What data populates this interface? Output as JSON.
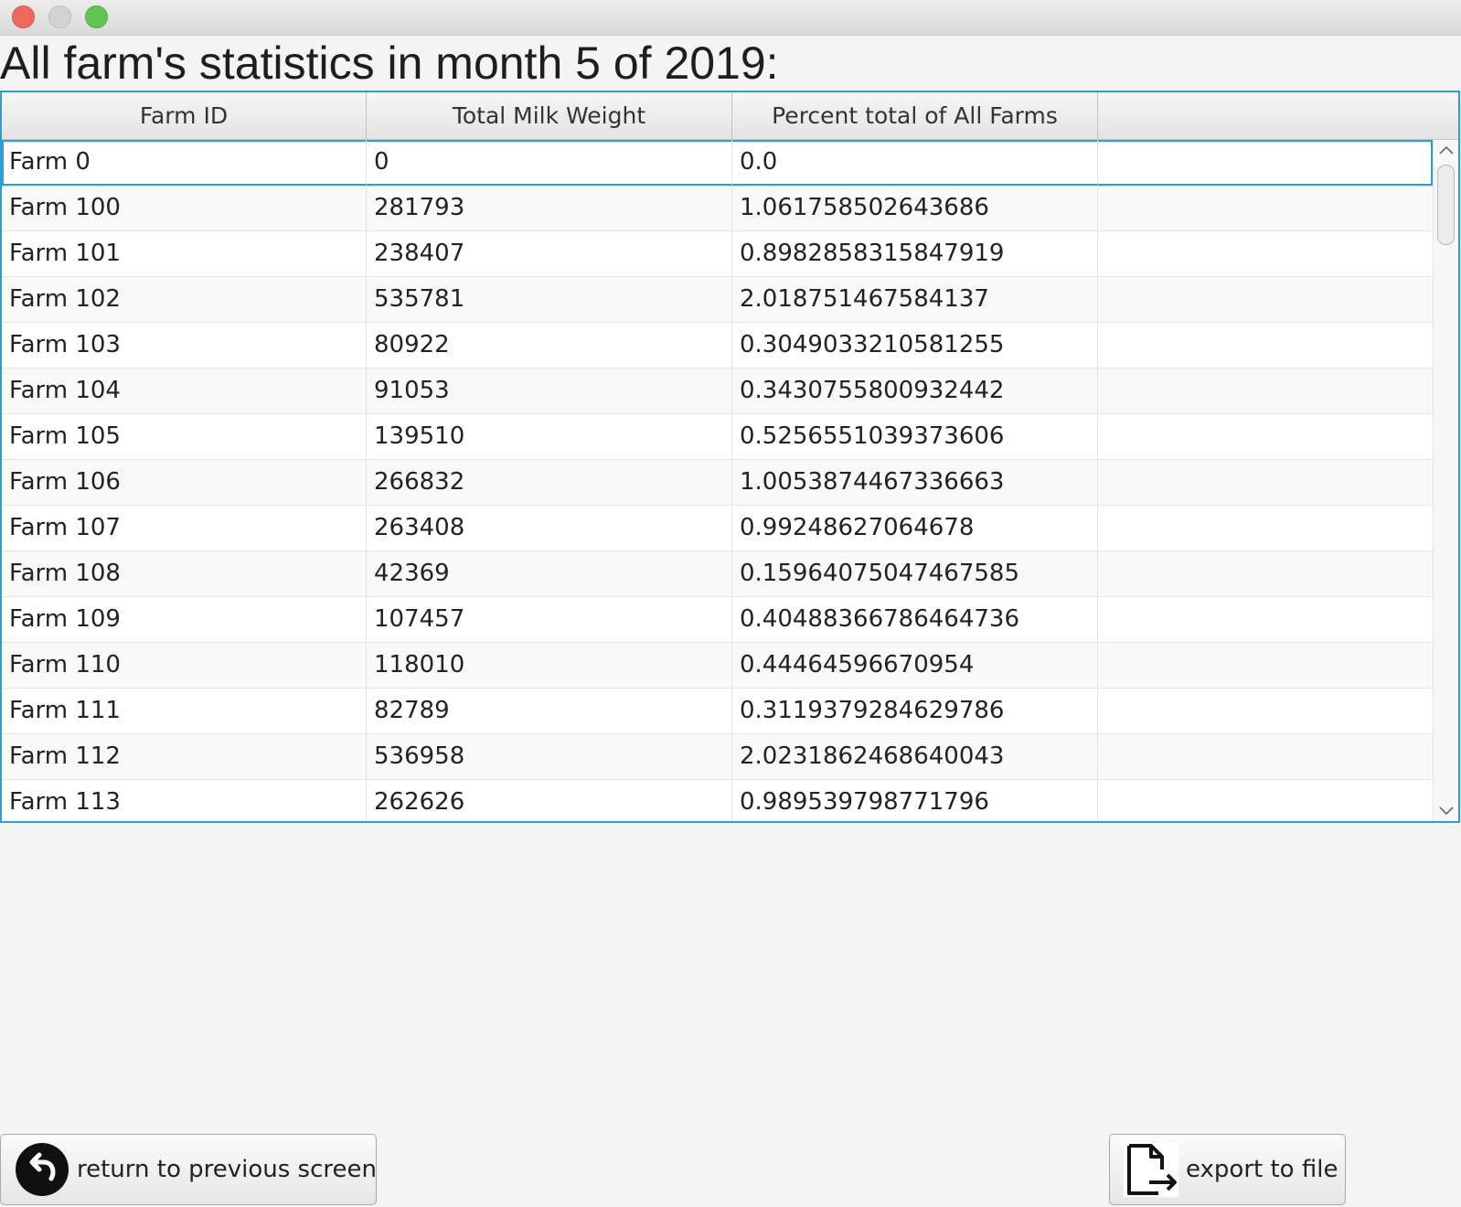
{
  "window": {
    "controls": [
      "close",
      "minimize",
      "zoom"
    ]
  },
  "page_title": "All farm's statistics in month 5 of 2019:",
  "table": {
    "columns": [
      "Farm ID",
      "Total Milk Weight",
      "Percent total of All Farms",
      ""
    ],
    "selected_row": 0,
    "rows": [
      [
        "Farm 0",
        "0",
        "0.0",
        ""
      ],
      [
        "Farm 100",
        "281793",
        "1.061758502643686",
        ""
      ],
      [
        "Farm 101",
        "238407",
        "0.8982858315847919",
        ""
      ],
      [
        "Farm 102",
        "535781",
        "2.018751467584137",
        ""
      ],
      [
        "Farm 103",
        "80922",
        "0.3049033210581255",
        ""
      ],
      [
        "Farm 104",
        "91053",
        "0.3430755800932442",
        ""
      ],
      [
        "Farm 105",
        "139510",
        "0.5256551039373606",
        ""
      ],
      [
        "Farm 106",
        "266832",
        "1.0053874467336663",
        ""
      ],
      [
        "Farm 107",
        "263408",
        "0.99248627064678",
        ""
      ],
      [
        "Farm 108",
        "42369",
        "0.15964075047467585",
        ""
      ],
      [
        "Farm 109",
        "107457",
        "0.40488366786464736",
        ""
      ],
      [
        "Farm 110",
        "118010",
        "0.44464596670954",
        ""
      ],
      [
        "Farm 111",
        "82789",
        "0.3119379284629786",
        ""
      ],
      [
        "Farm 112",
        "536958",
        "2.0231862468640043",
        ""
      ],
      [
        "Farm 113",
        "262626",
        "0.989539798771796",
        ""
      ]
    ]
  },
  "scrollbar": {
    "up_icon": "chevron-up-icon",
    "down_icon": "chevron-down-icon"
  },
  "buttons": {
    "return_label": "return to previous screen",
    "return_icon": "back-arrow-icon",
    "export_label": "export to file",
    "export_icon": "file-export-icon"
  }
}
